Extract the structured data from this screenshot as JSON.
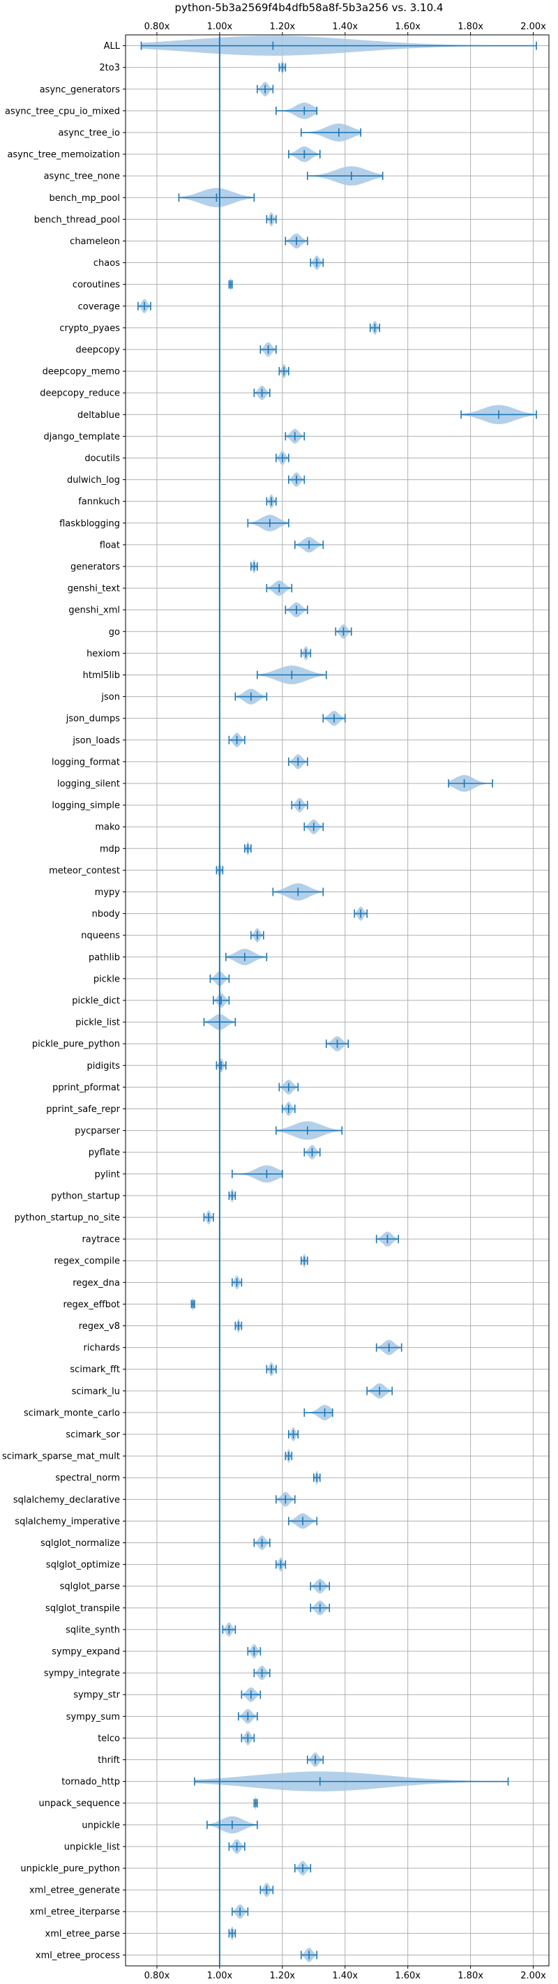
{
  "chart_data": {
    "type": "violin",
    "title": "python-5b3a2569f4b4dfb58a8f-5b3a256 vs. 3.10.4",
    "xlabel": "",
    "ylabel": "",
    "xlim": [
      0.7,
      2.05
    ],
    "xticks": [
      0.8,
      1.0,
      1.2,
      1.4,
      1.6,
      1.8,
      2.0
    ],
    "xtick_labels": [
      "0.80x",
      "1.00x",
      "1.20x",
      "1.40x",
      "1.60x",
      "1.80x",
      "2.00x"
    ],
    "x_axis_position": "top-and-bottom",
    "reference_line": 1.0,
    "grid": true,
    "colors": {
      "violin": "#a6c8e6",
      "line": "#1f77b4",
      "grid": "#b0b0b0"
    },
    "benchmarks": [
      {
        "name": "ALL",
        "min": 0.75,
        "max": 2.01,
        "median": 1.17,
        "mean": 1.22
      },
      {
        "name": "2to3",
        "min": 1.19,
        "max": 1.21,
        "median": 1.2,
        "mean": 1.2
      },
      {
        "name": "async_generators",
        "min": 1.12,
        "max": 1.17,
        "median": 1.145,
        "mean": 1.145
      },
      {
        "name": "async_tree_cpu_io_mixed",
        "min": 1.18,
        "max": 1.31,
        "median": 1.27,
        "mean": 1.25
      },
      {
        "name": "async_tree_io",
        "min": 1.26,
        "max": 1.45,
        "median": 1.38,
        "mean": 1.37
      },
      {
        "name": "async_tree_memoization",
        "min": 1.22,
        "max": 1.32,
        "median": 1.27,
        "mean": 1.27
      },
      {
        "name": "async_tree_none",
        "min": 1.28,
        "max": 1.52,
        "median": 1.42,
        "mean": 1.41
      },
      {
        "name": "bench_mp_pool",
        "min": 0.87,
        "max": 1.11,
        "median": 0.99,
        "mean": 0.98
      },
      {
        "name": "bench_thread_pool",
        "min": 1.15,
        "max": 1.18,
        "median": 1.165,
        "mean": 1.165
      },
      {
        "name": "chameleon",
        "min": 1.21,
        "max": 1.28,
        "median": 1.245,
        "mean": 1.245
      },
      {
        "name": "chaos",
        "min": 1.29,
        "max": 1.33,
        "median": 1.31,
        "mean": 1.31
      },
      {
        "name": "coroutines",
        "min": 1.03,
        "max": 1.04,
        "median": 1.035,
        "mean": 1.035
      },
      {
        "name": "coverage",
        "min": 0.74,
        "max": 0.78,
        "median": 0.76,
        "mean": 0.76
      },
      {
        "name": "crypto_pyaes",
        "min": 1.48,
        "max": 1.51,
        "median": 1.495,
        "mean": 1.495
      },
      {
        "name": "deepcopy",
        "min": 1.13,
        "max": 1.18,
        "median": 1.155,
        "mean": 1.155
      },
      {
        "name": "deepcopy_memo",
        "min": 1.19,
        "max": 1.22,
        "median": 1.205,
        "mean": 1.205
      },
      {
        "name": "deepcopy_reduce",
        "min": 1.11,
        "max": 1.16,
        "median": 1.135,
        "mean": 1.135
      },
      {
        "name": "deltablue",
        "min": 1.77,
        "max": 2.01,
        "median": 1.89,
        "mean": 1.89
      },
      {
        "name": "django_template",
        "min": 1.21,
        "max": 1.27,
        "median": 1.24,
        "mean": 1.24
      },
      {
        "name": "docutils",
        "min": 1.18,
        "max": 1.22,
        "median": 1.2,
        "mean": 1.2
      },
      {
        "name": "dulwich_log",
        "min": 1.22,
        "max": 1.27,
        "median": 1.245,
        "mean": 1.245
      },
      {
        "name": "fannkuch",
        "min": 1.15,
        "max": 1.18,
        "median": 1.165,
        "mean": 1.165
      },
      {
        "name": "flaskblogging",
        "min": 1.09,
        "max": 1.22,
        "median": 1.16,
        "mean": 1.16
      },
      {
        "name": "float",
        "min": 1.24,
        "max": 1.33,
        "median": 1.285,
        "mean": 1.285
      },
      {
        "name": "generators",
        "min": 1.1,
        "max": 1.12,
        "median": 1.11,
        "mean": 1.11
      },
      {
        "name": "genshi_text",
        "min": 1.15,
        "max": 1.23,
        "median": 1.19,
        "mean": 1.19
      },
      {
        "name": "genshi_xml",
        "min": 1.21,
        "max": 1.28,
        "median": 1.245,
        "mean": 1.245
      },
      {
        "name": "go",
        "min": 1.37,
        "max": 1.42,
        "median": 1.395,
        "mean": 1.395
      },
      {
        "name": "hexiom",
        "min": 1.26,
        "max": 1.29,
        "median": 1.275,
        "mean": 1.275
      },
      {
        "name": "html5lib",
        "min": 1.12,
        "max": 1.34,
        "median": 1.23,
        "mean": 1.23
      },
      {
        "name": "json",
        "min": 1.05,
        "max": 1.15,
        "median": 1.1,
        "mean": 1.1
      },
      {
        "name": "json_dumps",
        "min": 1.33,
        "max": 1.4,
        "median": 1.365,
        "mean": 1.365
      },
      {
        "name": "json_loads",
        "min": 1.03,
        "max": 1.08,
        "median": 1.055,
        "mean": 1.055
      },
      {
        "name": "logging_format",
        "min": 1.22,
        "max": 1.28,
        "median": 1.25,
        "mean": 1.25
      },
      {
        "name": "logging_silent",
        "min": 1.73,
        "max": 1.87,
        "median": 1.78,
        "mean": 1.78
      },
      {
        "name": "logging_simple",
        "min": 1.23,
        "max": 1.28,
        "median": 1.255,
        "mean": 1.255
      },
      {
        "name": "mako",
        "min": 1.27,
        "max": 1.33,
        "median": 1.3,
        "mean": 1.3
      },
      {
        "name": "mdp",
        "min": 1.08,
        "max": 1.1,
        "median": 1.09,
        "mean": 1.09
      },
      {
        "name": "meteor_contest",
        "min": 0.99,
        "max": 1.01,
        "median": 1.0,
        "mean": 1.0
      },
      {
        "name": "mypy",
        "min": 1.17,
        "max": 1.33,
        "median": 1.25,
        "mean": 1.25
      },
      {
        "name": "nbody",
        "min": 1.43,
        "max": 1.47,
        "median": 1.45,
        "mean": 1.45
      },
      {
        "name": "nqueens",
        "min": 1.1,
        "max": 1.14,
        "median": 1.12,
        "mean": 1.12
      },
      {
        "name": "pathlib",
        "min": 1.02,
        "max": 1.15,
        "median": 1.08,
        "mean": 1.08
      },
      {
        "name": "pickle",
        "min": 0.97,
        "max": 1.03,
        "median": 1.0,
        "mean": 1.0
      },
      {
        "name": "pickle_dict",
        "min": 0.98,
        "max": 1.03,
        "median": 1.005,
        "mean": 1.005
      },
      {
        "name": "pickle_list",
        "min": 0.95,
        "max": 1.05,
        "median": 1.0,
        "mean": 1.0
      },
      {
        "name": "pickle_pure_python",
        "min": 1.34,
        "max": 1.41,
        "median": 1.375,
        "mean": 1.375
      },
      {
        "name": "pidigits",
        "min": 0.99,
        "max": 1.02,
        "median": 1.005,
        "mean": 1.005
      },
      {
        "name": "pprint_pformat",
        "min": 1.19,
        "max": 1.25,
        "median": 1.22,
        "mean": 1.22
      },
      {
        "name": "pprint_safe_repr",
        "min": 1.2,
        "max": 1.24,
        "median": 1.22,
        "mean": 1.22
      },
      {
        "name": "pycparser",
        "min": 1.18,
        "max": 1.39,
        "median": 1.28,
        "mean": 1.28
      },
      {
        "name": "pyflate",
        "min": 1.27,
        "max": 1.32,
        "median": 1.295,
        "mean": 1.295
      },
      {
        "name": "pylint",
        "min": 1.04,
        "max": 1.2,
        "median": 1.15,
        "mean": 1.15
      },
      {
        "name": "python_startup",
        "min": 1.03,
        "max": 1.05,
        "median": 1.04,
        "mean": 1.04
      },
      {
        "name": "python_startup_no_site",
        "min": 0.95,
        "max": 0.98,
        "median": 0.965,
        "mean": 0.965
      },
      {
        "name": "raytrace",
        "min": 1.5,
        "max": 1.57,
        "median": 1.535,
        "mean": 1.535
      },
      {
        "name": "regex_compile",
        "min": 1.26,
        "max": 1.28,
        "median": 1.27,
        "mean": 1.27
      },
      {
        "name": "regex_dna",
        "min": 1.04,
        "max": 1.07,
        "median": 1.055,
        "mean": 1.055
      },
      {
        "name": "regex_effbot",
        "min": 0.91,
        "max": 0.92,
        "median": 0.915,
        "mean": 0.915
      },
      {
        "name": "regex_v8",
        "min": 1.05,
        "max": 1.07,
        "median": 1.06,
        "mean": 1.06
      },
      {
        "name": "richards",
        "min": 1.5,
        "max": 1.58,
        "median": 1.54,
        "mean": 1.54
      },
      {
        "name": "scimark_fft",
        "min": 1.15,
        "max": 1.18,
        "median": 1.165,
        "mean": 1.165
      },
      {
        "name": "scimark_lu",
        "min": 1.47,
        "max": 1.55,
        "median": 1.51,
        "mean": 1.51
      },
      {
        "name": "scimark_monte_carlo",
        "min": 1.27,
        "max": 1.36,
        "median": 1.335,
        "mean": 1.335
      },
      {
        "name": "scimark_sor",
        "min": 1.22,
        "max": 1.25,
        "median": 1.235,
        "mean": 1.235
      },
      {
        "name": "scimark_sparse_mat_mult",
        "min": 1.21,
        "max": 1.23,
        "median": 1.22,
        "mean": 1.22
      },
      {
        "name": "spectral_norm",
        "min": 1.3,
        "max": 1.32,
        "median": 1.31,
        "mean": 1.31
      },
      {
        "name": "sqlalchemy_declarative",
        "min": 1.18,
        "max": 1.24,
        "median": 1.21,
        "mean": 1.21
      },
      {
        "name": "sqlalchemy_imperative",
        "min": 1.22,
        "max": 1.31,
        "median": 1.265,
        "mean": 1.265
      },
      {
        "name": "sqlglot_normalize",
        "min": 1.11,
        "max": 1.16,
        "median": 1.135,
        "mean": 1.135
      },
      {
        "name": "sqlglot_optimize",
        "min": 1.18,
        "max": 1.21,
        "median": 1.195,
        "mean": 1.195
      },
      {
        "name": "sqlglot_parse",
        "min": 1.29,
        "max": 1.35,
        "median": 1.32,
        "mean": 1.32
      },
      {
        "name": "sqlglot_transpile",
        "min": 1.29,
        "max": 1.35,
        "median": 1.32,
        "mean": 1.32
      },
      {
        "name": "sqlite_synth",
        "min": 1.01,
        "max": 1.05,
        "median": 1.03,
        "mean": 1.03
      },
      {
        "name": "sympy_expand",
        "min": 1.09,
        "max": 1.13,
        "median": 1.11,
        "mean": 1.11
      },
      {
        "name": "sympy_integrate",
        "min": 1.11,
        "max": 1.16,
        "median": 1.135,
        "mean": 1.135
      },
      {
        "name": "sympy_str",
        "min": 1.07,
        "max": 1.13,
        "median": 1.1,
        "mean": 1.1
      },
      {
        "name": "sympy_sum",
        "min": 1.06,
        "max": 1.12,
        "median": 1.09,
        "mean": 1.09
      },
      {
        "name": "telco",
        "min": 1.07,
        "max": 1.11,
        "median": 1.09,
        "mean": 1.09
      },
      {
        "name": "thrift",
        "min": 1.28,
        "max": 1.33,
        "median": 1.305,
        "mean": 1.305
      },
      {
        "name": "tornado_http",
        "min": 0.92,
        "max": 1.92,
        "median": 1.32,
        "mean": 1.32
      },
      {
        "name": "unpack_sequence",
        "min": 1.11,
        "max": 1.12,
        "median": 1.115,
        "mean": 1.115
      },
      {
        "name": "unpickle",
        "min": 0.96,
        "max": 1.12,
        "median": 1.04,
        "mean": 1.04
      },
      {
        "name": "unpickle_list",
        "min": 1.03,
        "max": 1.08,
        "median": 1.055,
        "mean": 1.055
      },
      {
        "name": "unpickle_pure_python",
        "min": 1.24,
        "max": 1.29,
        "median": 1.265,
        "mean": 1.265
      },
      {
        "name": "xml_etree_generate",
        "min": 1.13,
        "max": 1.17,
        "median": 1.15,
        "mean": 1.15
      },
      {
        "name": "xml_etree_iterparse",
        "min": 1.04,
        "max": 1.09,
        "median": 1.065,
        "mean": 1.065
      },
      {
        "name": "xml_etree_parse",
        "min": 1.03,
        "max": 1.05,
        "median": 1.04,
        "mean": 1.04
      },
      {
        "name": "xml_etree_process",
        "min": 1.26,
        "max": 1.31,
        "median": 1.285,
        "mean": 1.285
      }
    ]
  }
}
